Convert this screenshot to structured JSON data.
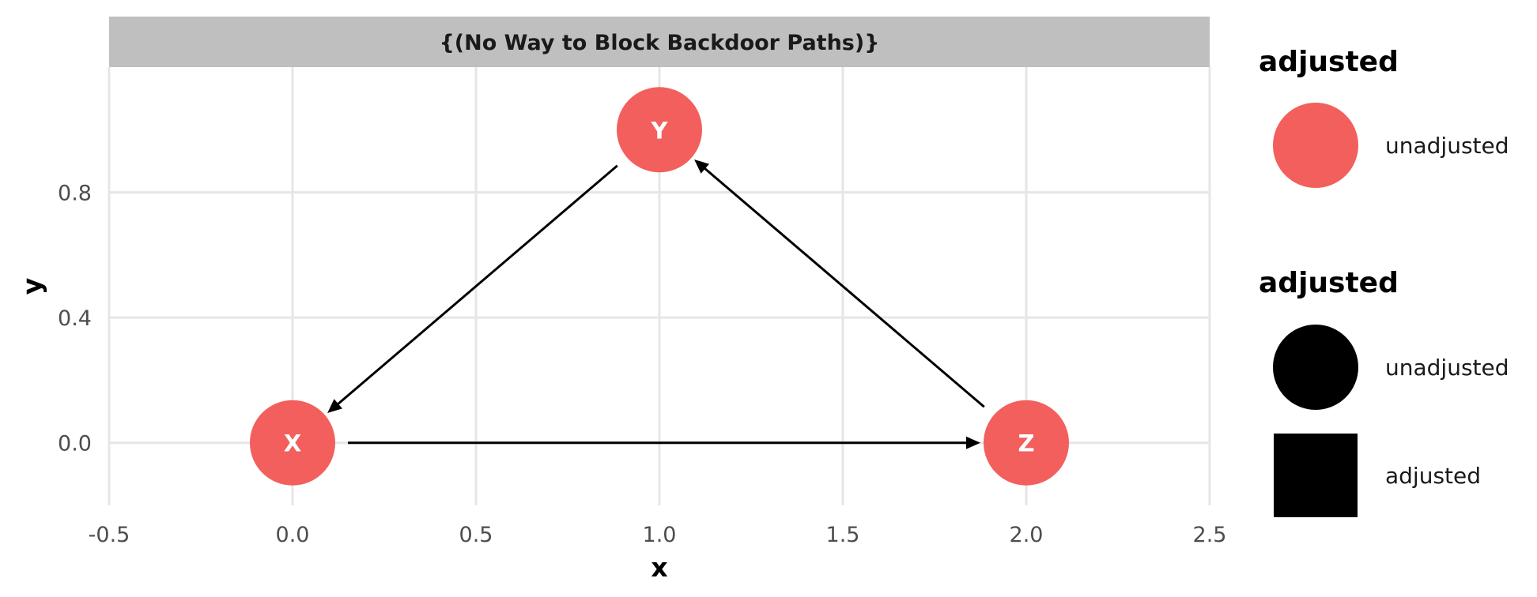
{
  "chart_data": {
    "type": "dag",
    "strip_title": "{(No Way to Block Backdoor Paths)}",
    "xlabel": "x",
    "ylabel": "y",
    "xlim": [
      -0.5,
      2.5
    ],
    "ylim": [
      -0.2,
      1.2
    ],
    "x_ticks": [
      -0.5,
      0.0,
      0.5,
      1.0,
      1.5,
      2.0,
      2.5
    ],
    "x_tick_labels": [
      "-0.5",
      "0.0",
      "0.5",
      "1.0",
      "1.5",
      "2.0",
      "2.5"
    ],
    "y_ticks": [
      0.0,
      0.4,
      0.8
    ],
    "y_tick_labels": [
      "0.0",
      "0.4",
      "0.8"
    ],
    "grid": true,
    "nodes": [
      {
        "name": "X",
        "x": 0.0,
        "y": 0.0,
        "adjusted": "unadjusted"
      },
      {
        "name": "Y",
        "x": 1.0,
        "y": 1.0,
        "adjusted": "unadjusted"
      },
      {
        "name": "Z",
        "x": 2.0,
        "y": 0.0,
        "adjusted": "unadjusted"
      }
    ],
    "edges": [
      {
        "from": "Y",
        "to": "X"
      },
      {
        "from": "X",
        "to": "Z"
      },
      {
        "from": "Z",
        "to": "Y"
      }
    ],
    "colors": {
      "node_unadjusted": "#f25f5c",
      "strip_background": "#bfbfbf",
      "edge": "#000000"
    },
    "legend": {
      "placement": "right",
      "color_legend": {
        "title": "adjusted",
        "entries": [
          {
            "label": "unadjusted",
            "color": "#f25f5c",
            "shape": "circle"
          }
        ]
      },
      "shape_legend": {
        "title": "adjusted",
        "entries": [
          {
            "label": "unadjusted",
            "shape": "circle"
          },
          {
            "label": "adjusted",
            "shape": "square"
          }
        ]
      }
    }
  }
}
